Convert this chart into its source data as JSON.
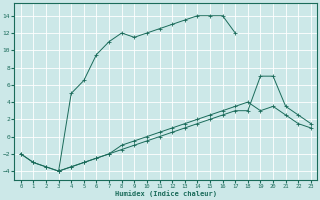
{
  "xlabel": "Humidex (Indice chaleur)",
  "background_color": "#cce8e8",
  "grid_color": "#ffffff",
  "line_color": "#1a6b5a",
  "xlim": [
    -0.5,
    23.5
  ],
  "ylim": [
    -5,
    15.5
  ],
  "xticks": [
    0,
    1,
    2,
    3,
    4,
    5,
    6,
    7,
    8,
    9,
    10,
    11,
    12,
    13,
    14,
    15,
    16,
    17,
    18,
    19,
    20,
    21,
    22,
    23
  ],
  "yticks": [
    -4,
    -2,
    0,
    2,
    4,
    6,
    8,
    10,
    12,
    14
  ],
  "curve1_x": [
    0,
    1,
    2,
    3,
    4,
    5,
    6,
    7,
    8,
    9,
    10,
    11,
    12,
    13,
    14,
    15,
    16,
    17
  ],
  "curve1_y": [
    -2,
    -3,
    -3.5,
    -4,
    5,
    6.5,
    9.5,
    11,
    12,
    11.5,
    12,
    12.5,
    13,
    13.5,
    14,
    14,
    14,
    12
  ],
  "curve2_x": [
    0,
    1,
    2,
    3,
    4,
    5,
    6,
    7,
    8,
    9,
    10,
    11,
    12,
    13,
    14,
    15,
    16,
    17,
    18,
    19,
    20,
    21,
    22,
    23
  ],
  "curve2_y": [
    -2,
    -3,
    -3.5,
    -4,
    -3.5,
    -3,
    -2.5,
    -2,
    -1,
    -0.5,
    0,
    0.5,
    1,
    1.5,
    2,
    2.5,
    3,
    3.5,
    4,
    3,
    3.5,
    2.5,
    1.5,
    1
  ],
  "curve3_x": [
    3,
    4,
    5,
    6,
    7,
    8,
    9,
    10,
    11,
    12,
    13,
    14,
    15,
    16,
    17,
    18,
    19,
    20,
    21,
    22,
    23
  ],
  "curve3_y": [
    -4,
    -3.5,
    -3,
    -2.5,
    -2,
    -1.5,
    -1,
    -0.5,
    0,
    0.5,
    1,
    1.5,
    2,
    2.5,
    3,
    3,
    7,
    7,
    3.5,
    2.5,
    1.5
  ]
}
